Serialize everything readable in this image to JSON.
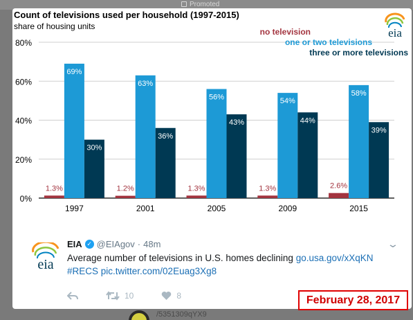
{
  "promoted": {
    "label": "Promoted"
  },
  "chart_data": {
    "type": "bar",
    "title": "Count of televisions used per household (1997-2015)",
    "subtitle": "share of housing units",
    "categories": [
      "1997",
      "2001",
      "2005",
      "2009",
      "2015"
    ],
    "series": [
      {
        "name": "no television",
        "color": "#a3343f",
        "values": [
          1.3,
          1.2,
          1.3,
          1.3,
          2.6
        ],
        "labels": [
          "1.3%",
          "1.2%",
          "1.3%",
          "1.3%",
          "2.6%"
        ]
      },
      {
        "name": "one or two televisions",
        "color": "#1d9ad6",
        "values": [
          69,
          63,
          56,
          54,
          58
        ],
        "labels": [
          "69%",
          "63%",
          "56%",
          "54%",
          "58%"
        ]
      },
      {
        "name": "three or more televisions",
        "color": "#003953",
        "values": [
          30,
          36,
          43,
          44,
          39
        ],
        "labels": [
          "30%",
          "36%",
          "43%",
          "44%",
          "39%"
        ]
      }
    ],
    "ylim": [
      0,
      80
    ],
    "yticks": [
      0,
      20,
      40,
      60,
      80
    ],
    "ytick_labels": [
      "0%",
      "20%",
      "40%",
      "60%",
      "80%"
    ],
    "grid": true,
    "legend_placement": "top-right",
    "source_logo": "eia"
  },
  "tweet": {
    "author_name": "EIA",
    "handle": "@EIAgov",
    "separator": "·",
    "time": "48m",
    "text_main": "Average number of televisions in U.S. homes declining ",
    "link_1": "go.usa.gov/xXqKN",
    "hashtag": "#RECS",
    "link_2": "pic.twitter.com/02Euag3Xg8",
    "retweets": "10",
    "likes": "8"
  },
  "date_badge": "February 28, 2017",
  "bottom_text": "/5351309qYX9",
  "colors": {
    "accent_link": "#1b6fb5",
    "badge_red": "#e00000"
  },
  "icons": [
    "eia-logo",
    "verified-icon",
    "chevron-down-icon",
    "reply-icon",
    "retweet-icon",
    "heart-icon"
  ]
}
